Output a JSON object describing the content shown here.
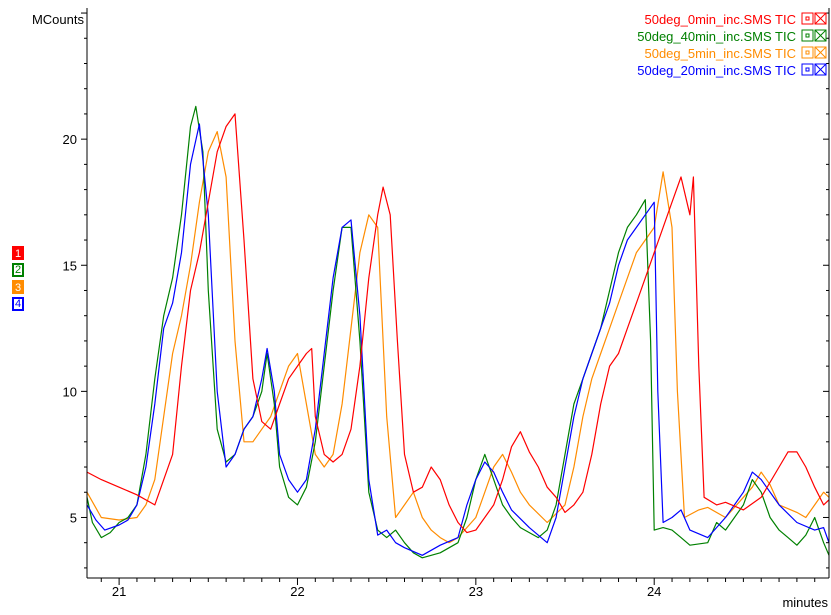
{
  "chart_data": {
    "type": "line",
    "ylabel": "MCounts",
    "xlabel": "minutes",
    "xlim": [
      20.82,
      24.98
    ],
    "ylim": [
      2.6,
      25.2
    ],
    "x_ticks": [
      21,
      22,
      23,
      24
    ],
    "x_tick_labels": [
      "21",
      "22",
      "23",
      "24"
    ],
    "y_ticks": [
      5,
      10,
      15,
      20
    ],
    "y_tick_labels": [
      "5",
      "10",
      "15",
      "20"
    ],
    "legend_position": "top-right",
    "series": [
      {
        "name": "50deg_0min_inc.SMS TIC",
        "badge": "1",
        "color": "#ff0000",
        "points": [
          [
            20.82,
            6.8
          ],
          [
            20.9,
            6.5
          ],
          [
            21.0,
            6.2
          ],
          [
            21.1,
            5.9
          ],
          [
            21.2,
            5.5
          ],
          [
            21.3,
            7.5
          ],
          [
            21.35,
            11.0
          ],
          [
            21.4,
            14.0
          ],
          [
            21.45,
            15.5
          ],
          [
            21.5,
            17.5
          ],
          [
            21.55,
            19.5
          ],
          [
            21.6,
            20.5
          ],
          [
            21.65,
            21.0
          ],
          [
            21.7,
            16.0
          ],
          [
            21.75,
            10.5
          ],
          [
            21.8,
            8.8
          ],
          [
            21.85,
            8.5
          ],
          [
            21.9,
            9.5
          ],
          [
            21.95,
            10.5
          ],
          [
            22.0,
            11.0
          ],
          [
            22.05,
            11.5
          ],
          [
            22.08,
            11.7
          ],
          [
            22.1,
            9.0
          ],
          [
            22.15,
            7.5
          ],
          [
            22.2,
            7.2
          ],
          [
            22.25,
            7.5
          ],
          [
            22.3,
            8.5
          ],
          [
            22.35,
            11.0
          ],
          [
            22.4,
            14.5
          ],
          [
            22.45,
            17.0
          ],
          [
            22.48,
            18.1
          ],
          [
            22.52,
            17.0
          ],
          [
            22.56,
            12.0
          ],
          [
            22.6,
            7.5
          ],
          [
            22.65,
            6.0
          ],
          [
            22.7,
            6.2
          ],
          [
            22.75,
            7.0
          ],
          [
            22.8,
            6.5
          ],
          [
            22.85,
            5.5
          ],
          [
            22.9,
            4.8
          ],
          [
            22.95,
            4.4
          ],
          [
            23.0,
            4.5
          ],
          [
            23.1,
            5.5
          ],
          [
            23.15,
            6.5
          ],
          [
            23.2,
            7.8
          ],
          [
            23.25,
            8.4
          ],
          [
            23.3,
            7.6
          ],
          [
            23.35,
            7.0
          ],
          [
            23.4,
            6.2
          ],
          [
            23.45,
            5.8
          ],
          [
            23.5,
            5.2
          ],
          [
            23.55,
            5.5
          ],
          [
            23.6,
            6.0
          ],
          [
            23.65,
            7.5
          ],
          [
            23.7,
            9.5
          ],
          [
            23.75,
            11.0
          ],
          [
            23.8,
            11.5
          ],
          [
            23.85,
            12.5
          ],
          [
            23.9,
            13.5
          ],
          [
            23.95,
            14.5
          ],
          [
            24.0,
            15.5
          ],
          [
            24.05,
            16.5
          ],
          [
            24.1,
            17.5
          ],
          [
            24.15,
            18.5
          ],
          [
            24.2,
            17.0
          ],
          [
            24.22,
            18.5
          ],
          [
            24.25,
            11.0
          ],
          [
            24.28,
            5.8
          ],
          [
            24.35,
            5.5
          ],
          [
            24.4,
            5.6
          ],
          [
            24.5,
            5.3
          ],
          [
            24.6,
            5.8
          ],
          [
            24.7,
            7.0
          ],
          [
            24.75,
            7.6
          ],
          [
            24.8,
            7.6
          ],
          [
            24.85,
            7.0
          ],
          [
            24.9,
            6.2
          ],
          [
            24.95,
            5.5
          ],
          [
            24.98,
            5.7
          ]
        ]
      },
      {
        "name": "50deg_40min_inc.SMS TIC",
        "badge": "2",
        "color": "#008000",
        "points": [
          [
            20.82,
            5.8
          ],
          [
            20.85,
            4.8
          ],
          [
            20.9,
            4.2
          ],
          [
            20.95,
            4.4
          ],
          [
            21.0,
            4.8
          ],
          [
            21.05,
            5.0
          ],
          [
            21.1,
            5.5
          ],
          [
            21.15,
            7.5
          ],
          [
            21.2,
            10.5
          ],
          [
            21.25,
            13.0
          ],
          [
            21.3,
            14.5
          ],
          [
            21.35,
            17.0
          ],
          [
            21.4,
            20.5
          ],
          [
            21.43,
            21.3
          ],
          [
            21.47,
            19.5
          ],
          [
            21.5,
            14.0
          ],
          [
            21.55,
            8.5
          ],
          [
            21.6,
            7.2
          ],
          [
            21.65,
            7.5
          ],
          [
            21.7,
            8.5
          ],
          [
            21.75,
            9.0
          ],
          [
            21.8,
            10.0
          ],
          [
            21.83,
            11.5
          ],
          [
            21.87,
            9.5
          ],
          [
            21.9,
            7.0
          ],
          [
            21.95,
            5.8
          ],
          [
            22.0,
            5.5
          ],
          [
            22.05,
            6.2
          ],
          [
            22.1,
            8.0
          ],
          [
            22.15,
            11.0
          ],
          [
            22.2,
            14.0
          ],
          [
            22.25,
            16.5
          ],
          [
            22.3,
            16.5
          ],
          [
            22.35,
            12.0
          ],
          [
            22.4,
            6.0
          ],
          [
            22.45,
            4.5
          ],
          [
            22.5,
            4.2
          ],
          [
            22.55,
            4.5
          ],
          [
            22.6,
            4.0
          ],
          [
            22.65,
            3.6
          ],
          [
            22.7,
            3.4
          ],
          [
            22.8,
            3.6
          ],
          [
            22.9,
            4.0
          ],
          [
            22.95,
            5.0
          ],
          [
            23.0,
            6.5
          ],
          [
            23.05,
            7.5
          ],
          [
            23.1,
            6.5
          ],
          [
            23.15,
            5.5
          ],
          [
            23.2,
            5.0
          ],
          [
            23.25,
            4.6
          ],
          [
            23.3,
            4.4
          ],
          [
            23.35,
            4.2
          ],
          [
            23.4,
            4.5
          ],
          [
            23.45,
            5.5
          ],
          [
            23.5,
            7.5
          ],
          [
            23.55,
            9.5
          ],
          [
            23.6,
            10.5
          ],
          [
            23.65,
            11.5
          ],
          [
            23.7,
            12.5
          ],
          [
            23.75,
            14.0
          ],
          [
            23.8,
            15.5
          ],
          [
            23.85,
            16.5
          ],
          [
            23.9,
            17.0
          ],
          [
            23.95,
            17.6
          ],
          [
            23.98,
            12.0
          ],
          [
            24.0,
            4.5
          ],
          [
            24.05,
            4.6
          ],
          [
            24.1,
            4.5
          ],
          [
            24.15,
            4.2
          ],
          [
            24.2,
            3.9
          ],
          [
            24.3,
            4.0
          ],
          [
            24.35,
            4.8
          ],
          [
            24.4,
            4.5
          ],
          [
            24.5,
            5.5
          ],
          [
            24.55,
            6.5
          ],
          [
            24.6,
            6.0
          ],
          [
            24.65,
            5.0
          ],
          [
            24.7,
            4.5
          ],
          [
            24.75,
            4.2
          ],
          [
            24.8,
            3.9
          ],
          [
            24.85,
            4.3
          ],
          [
            24.9,
            5.0
          ],
          [
            24.95,
            4.0
          ],
          [
            24.98,
            3.5
          ]
        ]
      },
      {
        "name": "50deg_5min_inc.SMS TIC",
        "badge": "3",
        "color": "#ff8c00",
        "points": [
          [
            20.82,
            6.0
          ],
          [
            20.9,
            5.0
          ],
          [
            21.0,
            4.9
          ],
          [
            21.1,
            5.0
          ],
          [
            21.15,
            5.5
          ],
          [
            21.2,
            6.5
          ],
          [
            21.25,
            9.0
          ],
          [
            21.3,
            11.5
          ],
          [
            21.35,
            13.0
          ],
          [
            21.4,
            15.0
          ],
          [
            21.45,
            17.5
          ],
          [
            21.5,
            19.5
          ],
          [
            21.55,
            20.3
          ],
          [
            21.6,
            18.5
          ],
          [
            21.65,
            12.0
          ],
          [
            21.7,
            8.0
          ],
          [
            21.75,
            8.0
          ],
          [
            21.8,
            8.5
          ],
          [
            21.85,
            9.0
          ],
          [
            21.9,
            10.0
          ],
          [
            21.95,
            11.0
          ],
          [
            22.0,
            11.5
          ],
          [
            22.05,
            9.5
          ],
          [
            22.1,
            7.5
          ],
          [
            22.15,
            7.0
          ],
          [
            22.2,
            7.5
          ],
          [
            22.25,
            9.5
          ],
          [
            22.3,
            12.5
          ],
          [
            22.35,
            15.5
          ],
          [
            22.4,
            17.0
          ],
          [
            22.45,
            16.5
          ],
          [
            22.5,
            9.0
          ],
          [
            22.55,
            5.0
          ],
          [
            22.6,
            5.5
          ],
          [
            22.65,
            6.0
          ],
          [
            22.7,
            5.0
          ],
          [
            22.75,
            4.5
          ],
          [
            22.8,
            4.2
          ],
          [
            22.85,
            4.0
          ],
          [
            22.9,
            4.2
          ],
          [
            23.0,
            5.0
          ],
          [
            23.05,
            6.0
          ],
          [
            23.1,
            7.0
          ],
          [
            23.15,
            7.5
          ],
          [
            23.2,
            6.8
          ],
          [
            23.25,
            6.0
          ],
          [
            23.3,
            5.5
          ],
          [
            23.4,
            4.8
          ],
          [
            23.5,
            5.5
          ],
          [
            23.55,
            7.0
          ],
          [
            23.6,
            9.0
          ],
          [
            23.65,
            10.5
          ],
          [
            23.7,
            11.5
          ],
          [
            23.75,
            12.5
          ],
          [
            23.8,
            13.5
          ],
          [
            23.85,
            14.5
          ],
          [
            23.9,
            15.5
          ],
          [
            23.95,
            16.0
          ],
          [
            24.0,
            16.5
          ],
          [
            24.05,
            18.7
          ],
          [
            24.1,
            16.5
          ],
          [
            24.13,
            10.0
          ],
          [
            24.17,
            5.0
          ],
          [
            24.25,
            5.3
          ],
          [
            24.3,
            5.4
          ],
          [
            24.4,
            5.0
          ],
          [
            24.5,
            5.8
          ],
          [
            24.55,
            6.2
          ],
          [
            24.6,
            6.8
          ],
          [
            24.65,
            6.3
          ],
          [
            24.7,
            5.5
          ],
          [
            24.8,
            5.2
          ],
          [
            24.85,
            5.0
          ],
          [
            24.9,
            5.5
          ],
          [
            24.95,
            6.0
          ],
          [
            24.98,
            5.8
          ]
        ]
      },
      {
        "name": "50deg_20min_inc.SMS TIC",
        "badge": "4",
        "color": "#0000ff",
        "points": [
          [
            20.82,
            5.5
          ],
          [
            20.87,
            4.9
          ],
          [
            20.92,
            4.5
          ],
          [
            21.0,
            4.7
          ],
          [
            21.05,
            4.9
          ],
          [
            21.1,
            5.5
          ],
          [
            21.15,
            7.0
          ],
          [
            21.2,
            9.5
          ],
          [
            21.25,
            12.5
          ],
          [
            21.3,
            13.5
          ],
          [
            21.35,
            15.5
          ],
          [
            21.4,
            19.0
          ],
          [
            21.45,
            20.6
          ],
          [
            21.5,
            17.0
          ],
          [
            21.55,
            10.0
          ],
          [
            21.6,
            7.0
          ],
          [
            21.65,
            7.5
          ],
          [
            21.7,
            8.5
          ],
          [
            21.75,
            9.0
          ],
          [
            21.8,
            10.5
          ],
          [
            21.83,
            11.7
          ],
          [
            21.87,
            10.0
          ],
          [
            21.9,
            7.5
          ],
          [
            21.95,
            6.5
          ],
          [
            22.0,
            6.0
          ],
          [
            22.05,
            6.5
          ],
          [
            22.1,
            8.5
          ],
          [
            22.15,
            11.5
          ],
          [
            22.2,
            14.5
          ],
          [
            22.25,
            16.5
          ],
          [
            22.3,
            16.8
          ],
          [
            22.35,
            13.0
          ],
          [
            22.4,
            6.5
          ],
          [
            22.45,
            4.3
          ],
          [
            22.5,
            4.5
          ],
          [
            22.55,
            4.0
          ],
          [
            22.6,
            3.8
          ],
          [
            22.7,
            3.5
          ],
          [
            22.8,
            3.9
          ],
          [
            22.9,
            4.2
          ],
          [
            22.95,
            5.5
          ],
          [
            23.0,
            6.5
          ],
          [
            23.05,
            7.2
          ],
          [
            23.1,
            6.8
          ],
          [
            23.15,
            6.0
          ],
          [
            23.2,
            5.3
          ],
          [
            23.3,
            4.6
          ],
          [
            23.4,
            4.0
          ],
          [
            23.45,
            5.0
          ],
          [
            23.5,
            7.0
          ],
          [
            23.55,
            9.0
          ],
          [
            23.6,
            10.5
          ],
          [
            23.65,
            11.5
          ],
          [
            23.7,
            12.5
          ],
          [
            23.75,
            13.5
          ],
          [
            23.8,
            15.0
          ],
          [
            23.85,
            16.0
          ],
          [
            23.9,
            16.5
          ],
          [
            23.95,
            17.0
          ],
          [
            24.0,
            17.5
          ],
          [
            24.02,
            10.0
          ],
          [
            24.05,
            4.8
          ],
          [
            24.1,
            5.0
          ],
          [
            24.15,
            5.3
          ],
          [
            24.2,
            4.5
          ],
          [
            24.3,
            4.2
          ],
          [
            24.4,
            5.0
          ],
          [
            24.5,
            6.0
          ],
          [
            24.55,
            6.8
          ],
          [
            24.6,
            6.5
          ],
          [
            24.7,
            5.5
          ],
          [
            24.8,
            4.8
          ],
          [
            24.9,
            4.5
          ],
          [
            24.95,
            4.6
          ],
          [
            24.98,
            4.0
          ]
        ]
      }
    ]
  },
  "colors": {
    "axis": "#000000",
    "background": "#ffffff"
  }
}
